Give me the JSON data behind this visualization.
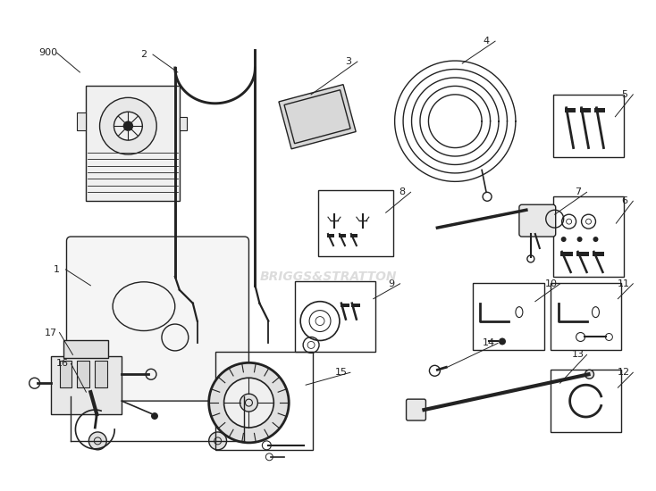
{
  "background_color": "#ffffff",
  "watermark": "BRIGGS&STRATTON",
  "line_color": "#222222"
}
